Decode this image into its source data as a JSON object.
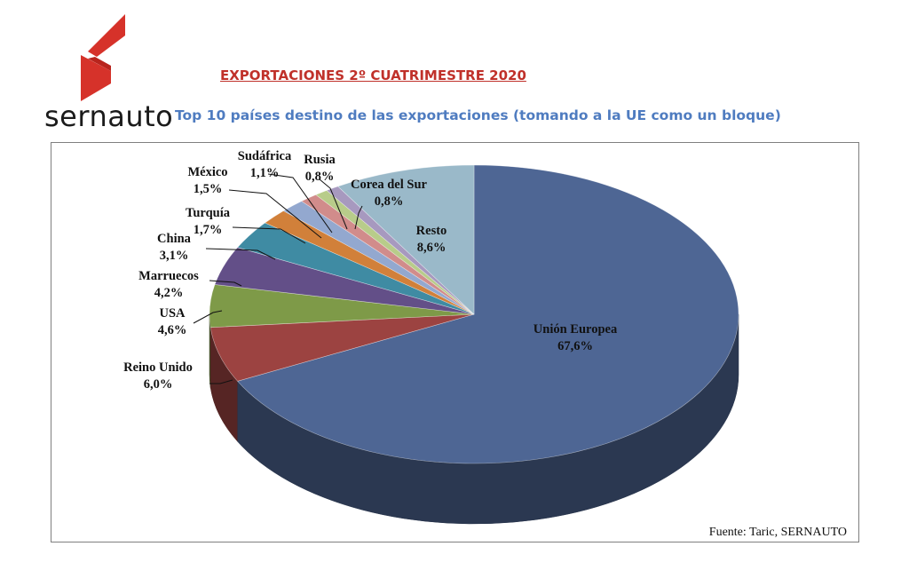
{
  "brand": {
    "logo_text": "sernauto"
  },
  "header": {
    "title": "EXPORTACIONES 2º CUATRIMESTRE 2020",
    "subtitle": "Top 10 países destino de las exportaciones (tomando a la UE como un bloque)"
  },
  "source": "Fuente: Taric, SERNAUTO",
  "chart_data": {
    "type": "pie",
    "title": "Top 10 países destino de las exportaciones (tomando a la UE como un bloque)",
    "three_d": true,
    "legend": "none",
    "slices": [
      {
        "label": "Unión Europea",
        "value": 67.6,
        "text": "67,6%",
        "color": "#4e6694"
      },
      {
        "label": "Reino Unido",
        "value": 6.0,
        "text": "6,0%",
        "color": "#9c4341"
      },
      {
        "label": "USA",
        "value": 4.6,
        "text": "4,6%",
        "color": "#7e9a48"
      },
      {
        "label": "Marruecos",
        "value": 4.2,
        "text": "4,2%",
        "color": "#634f88"
      },
      {
        "label": "China",
        "value": 3.1,
        "text": "3,1%",
        "color": "#3f8ba3"
      },
      {
        "label": "Turquía",
        "value": 1.7,
        "text": "1,7%",
        "color": "#d1803a"
      },
      {
        "label": "México",
        "value": 1.5,
        "text": "1,5%",
        "color": "#93a8cf"
      },
      {
        "label": "Sudáfrica",
        "value": 1.1,
        "text": "1,1%",
        "color": "#d18c8b"
      },
      {
        "label": "Rusia",
        "value": 0.8,
        "text": "0,8%",
        "color": "#b8cc8a"
      },
      {
        "label": "Corea del Sur",
        "value": 0.8,
        "text": "0,8%",
        "color": "#a799bf"
      },
      {
        "label": "Resto",
        "value": 8.6,
        "text": "8,6%",
        "color": "#9ab9c9"
      }
    ]
  }
}
